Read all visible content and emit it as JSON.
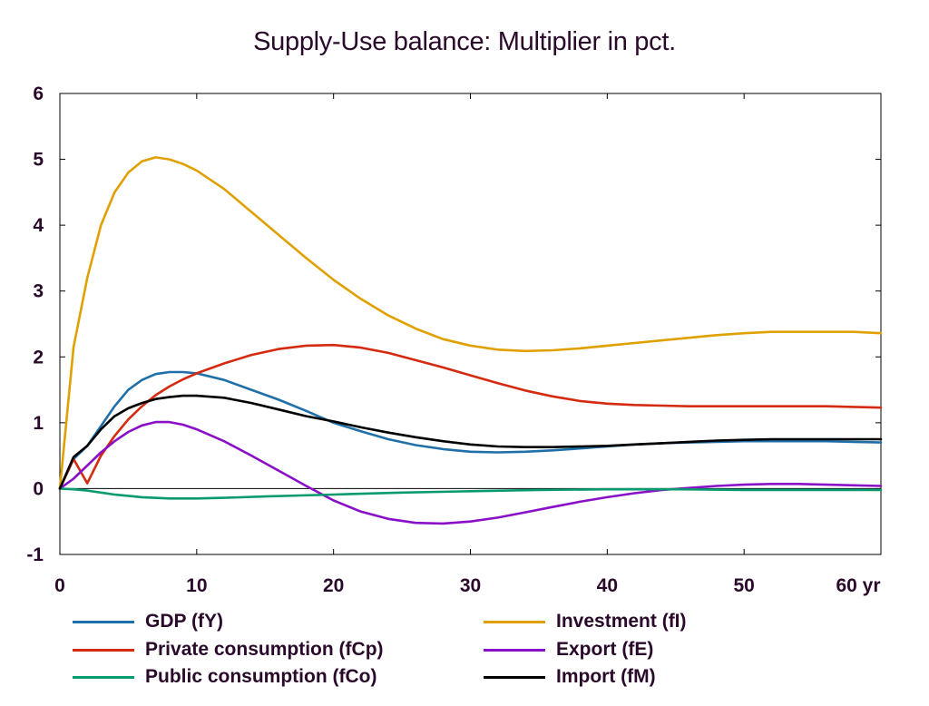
{
  "chart_data": {
    "type": "line",
    "title": "Supply-Use balance: Multiplier in pct.",
    "xlabel": "",
    "ylabel": "",
    "xlim": [
      0,
      60
    ],
    "ylim": [
      -1,
      6
    ],
    "xticks": [
      0,
      10,
      20,
      30,
      40,
      50,
      60
    ],
    "xtick_labels": [
      "0",
      "10",
      "20",
      "30",
      "40",
      "50",
      "60 yr"
    ],
    "yticks": [
      6,
      5,
      4,
      3,
      2,
      1,
      0,
      -1
    ],
    "ytick_labels": [
      "6",
      "5",
      "4",
      "3",
      "2",
      "1",
      "0",
      "-1"
    ],
    "grid": false,
    "legend_position": "bottom",
    "series": [
      {
        "name": "GDP (fY)",
        "color": "#1f6fa8",
        "x": [
          0,
          1,
          2,
          3,
          4,
          5,
          6,
          7,
          8,
          9,
          10,
          12,
          14,
          16,
          18,
          20,
          22,
          24,
          26,
          28,
          30,
          32,
          34,
          36,
          38,
          40,
          42,
          44,
          46,
          48,
          50,
          52,
          54,
          56,
          58,
          60
        ],
        "y": [
          0,
          0.45,
          0.65,
          0.95,
          1.25,
          1.5,
          1.65,
          1.74,
          1.77,
          1.77,
          1.75,
          1.65,
          1.5,
          1.35,
          1.18,
          1.0,
          0.87,
          0.75,
          0.66,
          0.6,
          0.56,
          0.55,
          0.56,
          0.58,
          0.61,
          0.64,
          0.67,
          0.69,
          0.7,
          0.71,
          0.72,
          0.72,
          0.72,
          0.72,
          0.71,
          0.7
        ]
      },
      {
        "name": "Investment (fI)",
        "color": "#e0a000",
        "x": [
          0,
          1,
          2,
          3,
          4,
          5,
          6,
          7,
          8,
          9,
          10,
          12,
          14,
          16,
          18,
          20,
          22,
          24,
          26,
          28,
          30,
          32,
          34,
          36,
          38,
          40,
          42,
          44,
          46,
          48,
          50,
          52,
          54,
          56,
          58,
          60
        ],
        "y": [
          0,
          2.15,
          3.2,
          4.0,
          4.5,
          4.8,
          4.97,
          5.03,
          5.0,
          4.93,
          4.83,
          4.55,
          4.2,
          3.85,
          3.5,
          3.17,
          2.88,
          2.63,
          2.43,
          2.27,
          2.17,
          2.11,
          2.09,
          2.1,
          2.13,
          2.17,
          2.21,
          2.25,
          2.29,
          2.33,
          2.36,
          2.38,
          2.38,
          2.38,
          2.38,
          2.36
        ]
      },
      {
        "name": "Private consumption (fCp)",
        "color": "#d42a10",
        "x": [
          0,
          1,
          2,
          3,
          4,
          5,
          6,
          7,
          8,
          9,
          10,
          12,
          14,
          16,
          18,
          20,
          22,
          24,
          26,
          28,
          30,
          32,
          34,
          36,
          38,
          40,
          42,
          44,
          46,
          48,
          50,
          52,
          54,
          56,
          58,
          60
        ],
        "y": [
          0,
          0.45,
          0.08,
          0.5,
          0.8,
          1.05,
          1.25,
          1.42,
          1.55,
          1.66,
          1.75,
          1.9,
          2.03,
          2.12,
          2.17,
          2.18,
          2.14,
          2.06,
          1.95,
          1.84,
          1.72,
          1.6,
          1.49,
          1.4,
          1.33,
          1.29,
          1.27,
          1.26,
          1.25,
          1.25,
          1.25,
          1.25,
          1.25,
          1.25,
          1.24,
          1.23
        ]
      },
      {
        "name": "Export (fE)",
        "color": "#8a10c8",
        "x": [
          0,
          1,
          2,
          3,
          4,
          5,
          6,
          7,
          8,
          9,
          10,
          12,
          14,
          16,
          18,
          20,
          22,
          24,
          26,
          28,
          30,
          32,
          34,
          36,
          38,
          40,
          42,
          44,
          46,
          48,
          50,
          52,
          54,
          56,
          58,
          60
        ],
        "y": [
          0,
          0.15,
          0.35,
          0.55,
          0.72,
          0.86,
          0.96,
          1.01,
          1.01,
          0.97,
          0.9,
          0.72,
          0.5,
          0.27,
          0.04,
          -0.18,
          -0.35,
          -0.46,
          -0.52,
          -0.53,
          -0.5,
          -0.44,
          -0.36,
          -0.28,
          -0.2,
          -0.13,
          -0.07,
          -0.02,
          0.01,
          0.04,
          0.06,
          0.07,
          0.07,
          0.06,
          0.05,
          0.04
        ]
      },
      {
        "name": "Public consumption (fCo)",
        "color": "#0a9a70",
        "x": [
          0,
          1,
          2,
          3,
          4,
          5,
          6,
          8,
          10,
          12,
          15,
          20,
          25,
          30,
          35,
          40,
          45,
          50,
          55,
          60
        ],
        "y": [
          0,
          -0.01,
          -0.03,
          -0.06,
          -0.09,
          -0.11,
          -0.13,
          -0.15,
          -0.15,
          -0.14,
          -0.12,
          -0.09,
          -0.06,
          -0.04,
          -0.02,
          -0.01,
          -0.01,
          -0.02,
          -0.02,
          -0.02
        ]
      },
      {
        "name": "Import (fM)",
        "color": "#000000",
        "x": [
          0,
          1,
          2,
          3,
          4,
          5,
          6,
          7,
          8,
          9,
          10,
          12,
          14,
          16,
          18,
          20,
          22,
          24,
          26,
          28,
          30,
          32,
          34,
          36,
          38,
          40,
          42,
          44,
          46,
          48,
          50,
          52,
          54,
          56,
          58,
          60
        ],
        "y": [
          0,
          0.48,
          0.65,
          0.9,
          1.1,
          1.22,
          1.3,
          1.36,
          1.39,
          1.41,
          1.41,
          1.38,
          1.3,
          1.2,
          1.1,
          1.02,
          0.93,
          0.85,
          0.78,
          0.72,
          0.67,
          0.64,
          0.63,
          0.63,
          0.64,
          0.65,
          0.67,
          0.69,
          0.71,
          0.73,
          0.74,
          0.75,
          0.75,
          0.75,
          0.75,
          0.75
        ]
      }
    ],
    "legend": [
      {
        "label": "GDP (fY)",
        "color": "#1f6fa8"
      },
      {
        "label": "Investment (fI)",
        "color": "#e0a000"
      },
      {
        "label": "Private consumption (fCp)",
        "color": "#d42a10"
      },
      {
        "label": "Export (fE)",
        "color": "#8a10c8"
      },
      {
        "label": "Public consumption (fCo)",
        "color": "#0a9a70"
      },
      {
        "label": "Import (fM)",
        "color": "#000000"
      }
    ]
  }
}
